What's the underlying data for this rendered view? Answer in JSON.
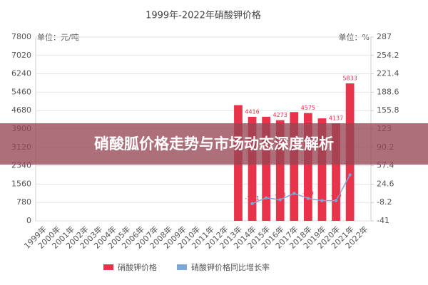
{
  "chart_data": {
    "type": "bar",
    "title": "1999年-2022年硝酸钾价格",
    "y_label": "单位：元/吨",
    "y2_label": "单位：%",
    "categories": [
      "1999年",
      "2000年",
      "2001年",
      "2002年",
      "2003年",
      "2004年",
      "2005年",
      "2006年",
      "2007年",
      "2008年",
      "2009年",
      "2010年",
      "2011年",
      "2012年",
      "2013年",
      "2014年",
      "2015年",
      "2016年",
      "2017年",
      "2018年",
      "2019年",
      "2020年",
      "2021年",
      "2022年"
    ],
    "series": [
      {
        "name": "硝酸钾价格",
        "color": "#e8334a",
        "type": "bar",
        "values": [
          null,
          null,
          null,
          null,
          null,
          null,
          null,
          null,
          null,
          null,
          null,
          null,
          null,
          null,
          4912,
          4416,
          4419,
          4273,
          4617,
          4575,
          4350,
          4137,
          5833,
          null
        ],
        "value_labels": [
          null,
          null,
          null,
          null,
          null,
          null,
          null,
          null,
          null,
          null,
          null,
          null,
          null,
          null,
          null,
          "4416",
          null,
          "4273",
          null,
          "4575",
          null,
          "4137",
          "5833",
          null
        ]
      },
      {
        "name": "硝酸钾价格同比增长率",
        "color": "#7da7d9",
        "type": "line",
        "axis": "y2",
        "values": [
          null,
          null,
          null,
          null,
          null,
          null,
          null,
          null,
          null,
          null,
          null,
          null,
          null,
          null,
          null,
          -10.1,
          0.1,
          -3.3,
          8.0,
          -0.9,
          -4.9,
          -4.9,
          41,
          null
        ],
        "value_labels": [
          null,
          null,
          null,
          null,
          null,
          null,
          null,
          null,
          null,
          null,
          null,
          null,
          null,
          null,
          null,
          "-10.1",
          null,
          "-3.3",
          null,
          "-0.9",
          null,
          "-4.9",
          "41",
          null
        ]
      }
    ],
    "ylim": [
      0,
      7800
    ],
    "yticks": [
      0,
      780,
      1560,
      2340,
      3120,
      3900,
      4680,
      5460,
      6240,
      7020,
      7800
    ],
    "y2lim": [
      -41,
      287
    ],
    "y2ticks": [
      -41,
      -8.2,
      24.6,
      57.4,
      90.2,
      123,
      155.8,
      188.6,
      221.4,
      254.2,
      287
    ],
    "grid": true
  },
  "overlay_title": "硝酸胍价格走势与市场动态深度解析"
}
